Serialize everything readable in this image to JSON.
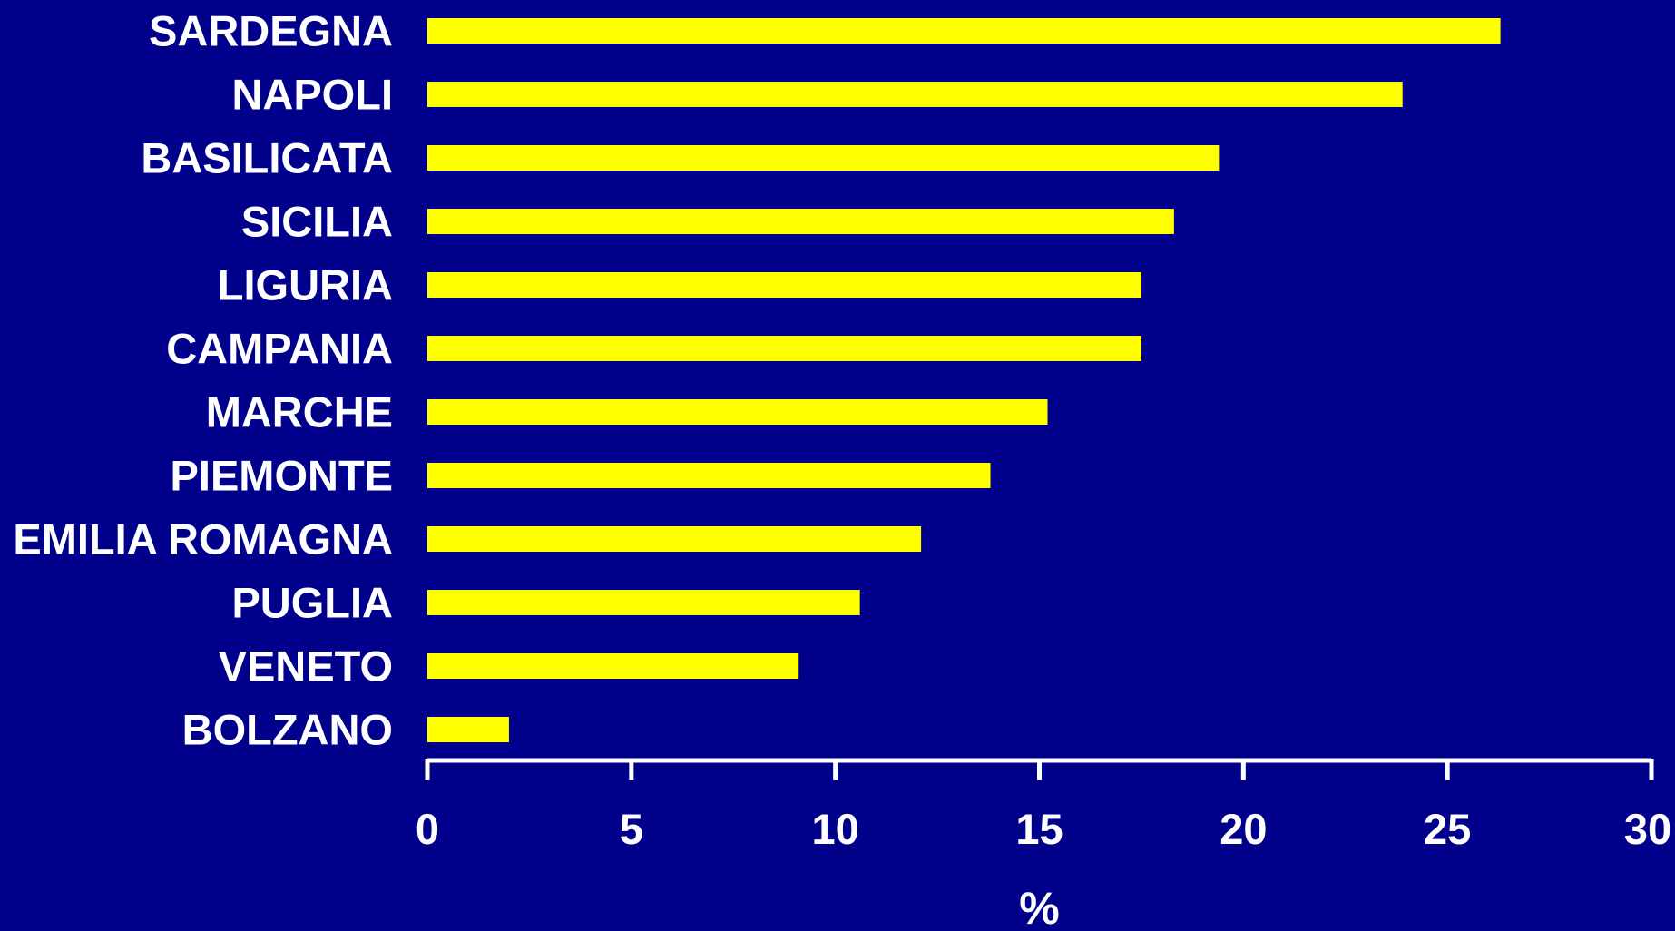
{
  "chart_data": {
    "type": "bar",
    "orientation": "horizontal",
    "categories": [
      "SARDEGNA",
      "NAPOLI",
      "BASILICATA",
      "SICILIA",
      "LIGURIA",
      "CAMPANIA",
      "MARCHE",
      "PIEMONTE",
      "EMILIA ROMAGNA",
      "PUGLIA",
      "VENETO",
      "BOLZANO"
    ],
    "values": [
      26.3,
      23.9,
      19.4,
      18.3,
      17.5,
      17.5,
      15.2,
      13.8,
      12.1,
      10.6,
      9.1,
      2.0
    ],
    "title": "",
    "xlabel": "%",
    "ylabel": "",
    "xlim": [
      0,
      30
    ],
    "xticks": [
      0,
      5,
      10,
      15,
      20,
      25,
      30
    ],
    "grid": false,
    "legend": "none",
    "colors": {
      "background": "#00008b",
      "bar": "#ffff00",
      "text": "#ffffff",
      "axis": "#ffffff"
    }
  }
}
